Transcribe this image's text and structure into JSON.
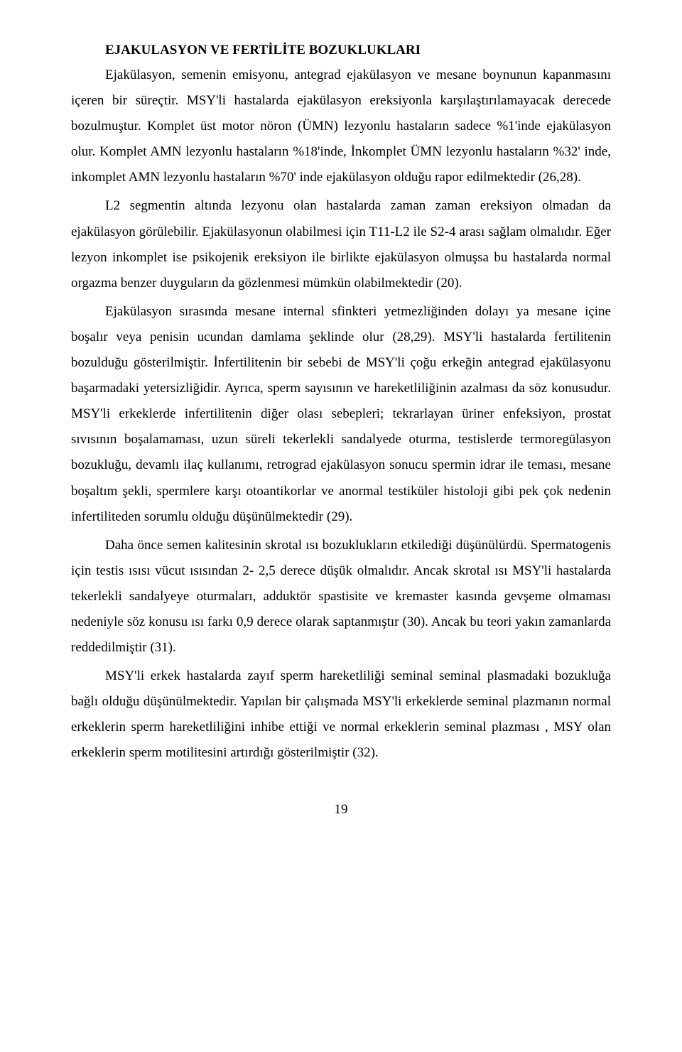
{
  "heading": "EJAKULASYON VE FERTİLİTE BOZUKLUKLARI",
  "paragraphs": {
    "p1": "Ejakülasyon, semenin emisyonu, antegrad ejakülasyon ve mesane boynunun kapanmasını içeren bir süreçtir. MSY'li hastalarda ejakülasyon ereksiyonla karşılaştırılamayacak derecede bozulmuştur. Komplet üst motor nöron (ÜMN) lezyonlu hastaların sadece %1'inde ejakülasyon olur. Komplet AMN lezyonlu hastaların %18'inde, İnkomplet ÜMN lezyonlu hastaların %32' inde, inkomplet AMN lezyonlu hastaların %70' inde ejakülasyon olduğu rapor edilmektedir (26,28).",
    "p2": "L2 segmentin altında lezyonu olan hastalarda zaman zaman ereksiyon olmadan da ejakülasyon görülebilir. Ejakülasyonun olabilmesi için T11-L2 ile S2-4 arası sağlam olmalıdır. Eğer lezyon inkomplet ise psikojenik ereksiyon ile birlikte ejakülasyon olmuşsa bu hastalarda normal orgazma benzer duyguların da gözlenmesi mümkün olabilmektedir (20).",
    "p3": "Ejakülasyon sırasında mesane internal sfinkteri yetmezliğinden dolayı ya mesane içine boşalır veya penisin ucundan damlama şeklinde olur (28,29). MSY'li hastalarda fertilitenin bozulduğu gösterilmiştir. İnfertilitenin bir sebebi de MSY'li çoğu erkeğin antegrad ejakülasyonu başarmadaki yetersizliğidir. Ayrıca, sperm sayısının ve hareketliliğinin azalması da söz konusudur. MSY'li erkeklerde infertilitenin diğer olası sebepleri; tekrarlayan üriner enfeksiyon, prostat sıvısının boşalamaması, uzun süreli tekerlekli sandalyede oturma, testislerde termoregülasyon bozukluğu, devamlı ilaç kullanımı, retrograd ejakülasyon sonucu spermin idrar ile teması, mesane boşaltım şekli, spermlere karşı otoantikorlar ve anormal testiküler histoloji gibi pek çok nedenin infertiliteden sorumlu olduğu düşünülmektedir (29).",
    "p4": "Daha önce semen kalitesinin skrotal ısı bozuklukların etkilediği düşünülürdü. Spermatogenis için testis ısısı vücut ısısından 2- 2,5 derece düşük olmalıdır. Ancak skrotal ısı MSY'li hastalarda tekerlekli sandalyeye oturmaları, adduktör spastisite ve kremaster kasında gevşeme olmaması nedeniyle söz konusu ısı farkı 0,9 derece olarak saptanmıştır (30). Ancak bu teori yakın zamanlarda reddedilmiştir (31).",
    "p5": "MSY'li erkek hastalarda zayıf sperm hareketliliği seminal seminal plasmadaki bozukluğa bağlı olduğu düşünülmektedir. Yapılan bir çalışmada MSY'li erkeklerde seminal plazmanın normal erkeklerin sperm hareketliliğini inhibe ettiği ve normal erkeklerin seminal plazması , MSY olan erkeklerin sperm motilitesini artırdığı gösterilmiştir (32)."
  },
  "pageNumber": "19",
  "style": {
    "bodyFont": "Times New Roman",
    "fontSizePt": 14,
    "textColor": "#000000",
    "backgroundColor": "#ffffff",
    "lineHeight": 1.9,
    "textIndentPx": 48
  }
}
